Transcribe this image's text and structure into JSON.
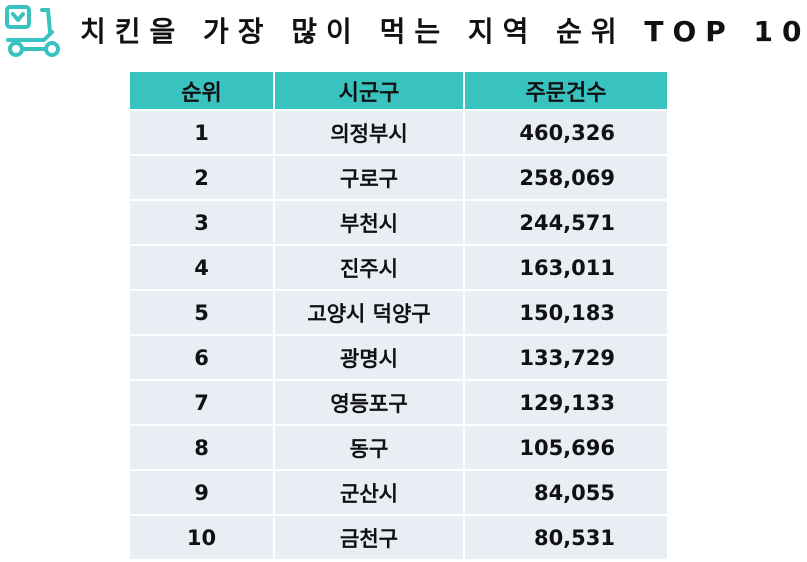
{
  "title": "치킨을 가장 많이 먹는 지역 순위 TOP 10",
  "logo_icon": "delivery-scooter-icon",
  "accent_color": "#39c3c0",
  "row_color": "#e9eef5",
  "table": {
    "headers": [
      "순위",
      "시군구",
      "주문건수"
    ],
    "rows": [
      {
        "rank": "1",
        "region": "의정부시",
        "orders": "460,326"
      },
      {
        "rank": "2",
        "region": "구로구",
        "orders": "258,069"
      },
      {
        "rank": "3",
        "region": "부천시",
        "orders": "244,571"
      },
      {
        "rank": "4",
        "region": "진주시",
        "orders": "163,011"
      },
      {
        "rank": "5",
        "region": "고양시 덕양구",
        "orders": "150,183"
      },
      {
        "rank": "6",
        "region": "광명시",
        "orders": "133,729"
      },
      {
        "rank": "7",
        "region": "영등포구",
        "orders": "129,133"
      },
      {
        "rank": "8",
        "region": "동구",
        "orders": "105,696"
      },
      {
        "rank": "9",
        "region": "군산시",
        "orders": "84,055"
      },
      {
        "rank": "10",
        "region": "금천구",
        "orders": "80,531"
      }
    ]
  }
}
